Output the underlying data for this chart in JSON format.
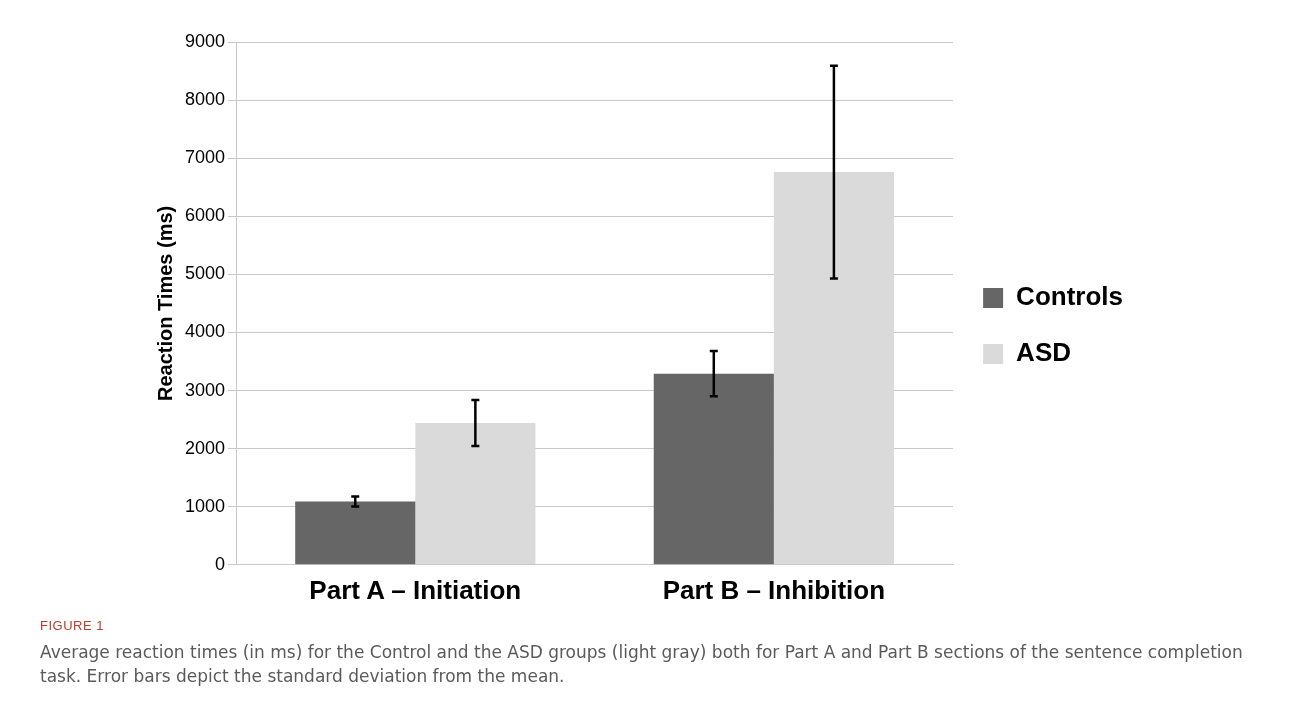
{
  "chart_data": {
    "type": "bar",
    "title": "FIGURE 1",
    "ylabel": "Reaction Times (ms)",
    "categories": [
      "Part A – Initiation",
      "Part B – Inhibition"
    ],
    "series": [
      {
        "name": "Controls",
        "color": "#666666",
        "values": [
          1090,
          3290
        ],
        "errors": [
          85,
          390
        ]
      },
      {
        "name": "ASD",
        "color": "#dadada",
        "values": [
          2440,
          6760
        ],
        "errors": [
          395,
          1830
        ]
      }
    ],
    "ylim": [
      0,
      9000
    ],
    "yticks": [
      0,
      1000,
      2000,
      3000,
      4000,
      5000,
      6000,
      7000,
      8000,
      9000
    ],
    "grid": "y",
    "legend": "right",
    "annotations": [
      "Average reaction times (in ms) for the Control and the ASD groups (light gray) both for Part A and Part B sections of the sentence completion task. Error bars depict the standard deviation from the mean."
    ]
  }
}
